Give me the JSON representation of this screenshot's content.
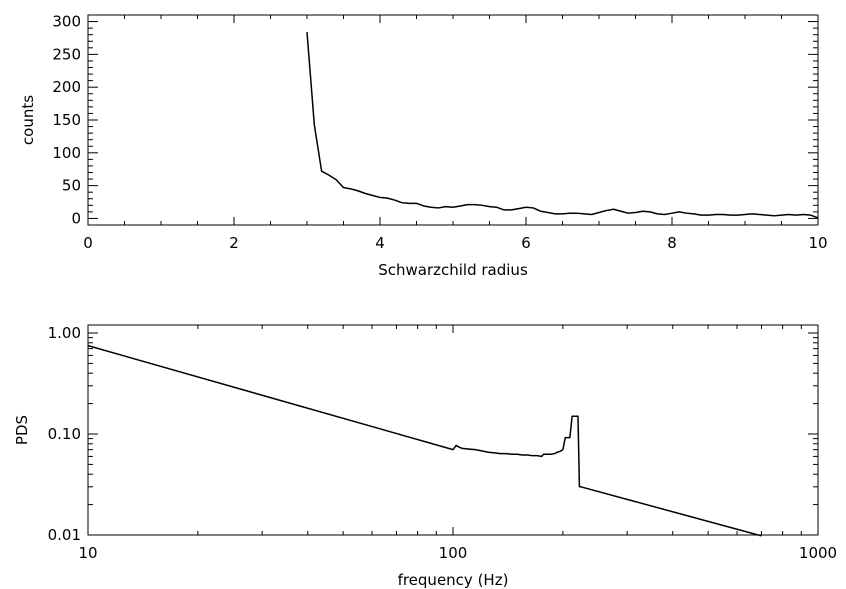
{
  "chart_data": [
    {
      "type": "line",
      "title": "",
      "xlabel": "Schwarzchild radius",
      "ylabel": "counts",
      "xlim": [
        0,
        10
      ],
      "ylim": [
        -10,
        310
      ],
      "xscale": "linear",
      "yscale": "linear",
      "grid": false,
      "legend": "none",
      "xticks": [
        0,
        2,
        4,
        6,
        8,
        10
      ],
      "xtick_labels": [
        "0",
        "2",
        "4",
        "6",
        "8",
        "10"
      ],
      "yticks": [
        0,
        50,
        100,
        150,
        200,
        250,
        300
      ],
      "ytick_labels": [
        "0",
        "50",
        "100",
        "150",
        "200",
        "250",
        "300"
      ],
      "series": [
        {
          "x": [
            3.0,
            3.1,
            3.2,
            3.3,
            3.4,
            3.5,
            3.6,
            3.7,
            3.8,
            3.9,
            4.0,
            4.1,
            4.2,
            4.3,
            4.4,
            4.5,
            4.6,
            4.7,
            4.8,
            4.9,
            5.0,
            5.1,
            5.2,
            5.3,
            5.4,
            5.5,
            5.6,
            5.7,
            5.8,
            5.9,
            6.0,
            6.1,
            6.2,
            6.3,
            6.4,
            6.5,
            6.6,
            6.7,
            6.8,
            6.9,
            7.0,
            7.1,
            7.2,
            7.3,
            7.4,
            7.5,
            7.6,
            7.7,
            7.8,
            7.9,
            8.0,
            8.1,
            8.2,
            8.3,
            8.4,
            8.5,
            8.6,
            8.7,
            8.8,
            8.9,
            9.0,
            9.1,
            9.2,
            9.3,
            9.4,
            9.5,
            9.6,
            9.7,
            9.8,
            9.9,
            10.0
          ],
          "values": [
            284,
            143,
            72,
            66,
            59,
            47,
            45,
            42,
            38,
            35,
            32,
            31,
            28,
            24,
            23,
            23,
            19,
            17,
            16,
            18,
            17,
            19,
            21,
            21,
            20,
            18,
            17,
            13,
            13,
            15,
            17,
            16,
            11,
            9,
            7,
            7,
            8,
            8,
            7,
            6,
            9,
            12,
            14,
            11,
            8,
            9,
            11,
            10,
            7,
            6,
            8,
            10,
            8,
            7,
            5,
            5,
            6,
            6,
            5,
            5,
            6,
            7,
            6,
            5,
            4,
            5,
            6,
            5,
            6,
            5,
            1
          ]
        }
      ]
    },
    {
      "type": "line",
      "title": "",
      "xlabel": "frequency (Hz)",
      "ylabel": "PDS",
      "xlim": [
        10,
        1000
      ],
      "ylim": [
        0.01,
        1.2
      ],
      "xscale": "log",
      "yscale": "log",
      "grid": false,
      "legend": "none",
      "xticks": [
        10,
        100,
        1000
      ],
      "xtick_labels": [
        "10",
        "100",
        "1000"
      ],
      "yticks": [
        0.01,
        0.1,
        1.0
      ],
      "ytick_labels": [
        "0.01",
        "0.10",
        "1.00"
      ],
      "series": [
        {
          "x": [
            10,
            100,
            102,
            104,
            106,
            110,
            115,
            120,
            125,
            130,
            135,
            140,
            145,
            150,
            155,
            160,
            165,
            170,
            175,
            177,
            180,
            185,
            190,
            193,
            196,
            200,
            203,
            206,
            209,
            212,
            215,
            218,
            220,
            222,
            224,
            700
          ],
          "values": [
            0.75,
            0.07,
            0.077,
            0.074,
            0.072,
            0.071,
            0.07,
            0.068,
            0.066,
            0.065,
            0.064,
            0.064,
            0.063,
            0.063,
            0.062,
            0.062,
            0.061,
            0.061,
            0.06,
            0.063,
            0.063,
            0.063,
            0.064,
            0.066,
            0.067,
            0.07,
            0.092,
            0.092,
            0.092,
            0.15,
            0.15,
            0.15,
            0.15,
            0.03,
            0.03,
            0.0098
          ]
        }
      ]
    }
  ]
}
